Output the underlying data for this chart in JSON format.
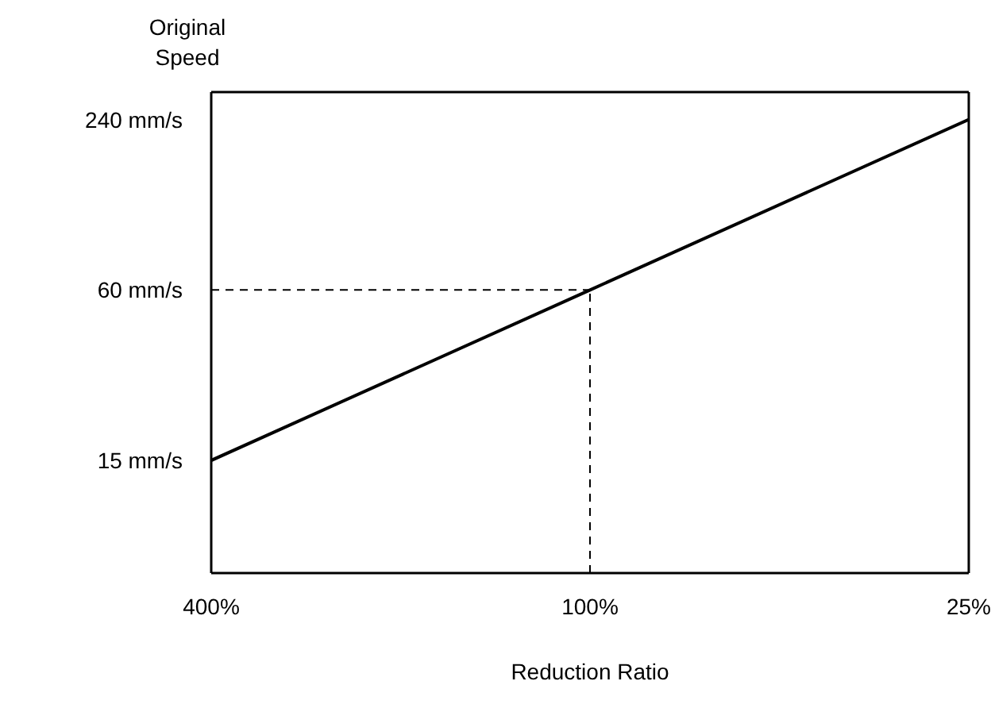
{
  "chart_data": {
    "type": "line",
    "xlabel": "Reduction Ratio",
    "ylabel": "Original Speed",
    "x": [
      400,
      100,
      25
    ],
    "series": [
      {
        "color": "#000000",
        "values": [
          15,
          60,
          240
        ]
      }
    ],
    "log": "xy",
    "xlim": [
      400,
      25
    ],
    "ylim": [
      6,
      300
    ],
    "xticks": [
      {
        "value": 400,
        "label": "400%"
      },
      {
        "value": 100,
        "label": "100%"
      },
      {
        "value": 25,
        "label": "25%"
      }
    ],
    "yticks": [
      {
        "value": 15,
        "label": "15 mm/s"
      },
      {
        "value": 60,
        "label": "60 mm/s"
      },
      {
        "value": 240,
        "label": "240 mm/s"
      }
    ],
    "ref_lines": [
      {
        "axis": "x",
        "value": 100,
        "line_style": "dashed",
        "color": "#000000"
      },
      {
        "axis": "y",
        "value": 60,
        "line_style": "dashed",
        "color": "#000000"
      }
    ],
    "grid": false,
    "marker": "none",
    "line_style": "solid"
  }
}
